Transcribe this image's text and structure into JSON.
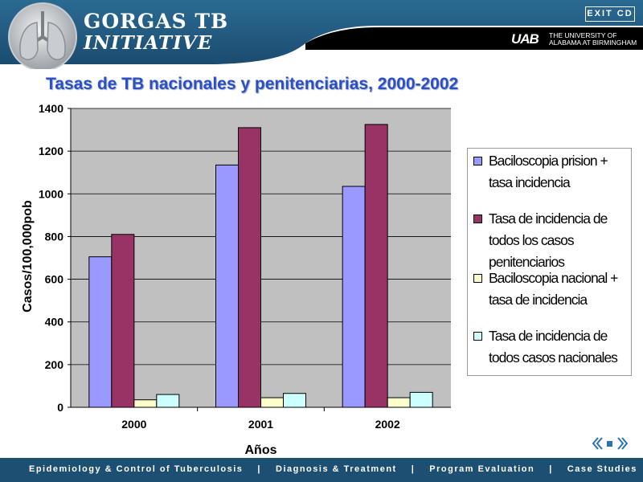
{
  "header": {
    "brand_line1": "GORGAS TB",
    "brand_line2": "INITIATIVE",
    "exit_label": "EXIT CD",
    "uab_mark": "UAB",
    "uab_line1": "THE UNIVERSITY OF",
    "uab_line2": "ALABAMA AT BIRMINGHAM"
  },
  "slide": {
    "title": "Tasas de TB nacionales y penitenciarias, 2000-2002"
  },
  "chart_data": {
    "type": "bar",
    "title": "Tasas de TB nacionales y penitenciarias, 2000-2002",
    "xlabel": "Años",
    "ylabel": "Casos/100,000pob",
    "ylim": [
      0,
      1400
    ],
    "yticks": [
      "0",
      "200",
      "400",
      "600",
      "800",
      "1000",
      "1200",
      "1400"
    ],
    "categories": [
      "2000",
      "2001",
      "2002"
    ],
    "legend_position": "right",
    "series": [
      {
        "name": "Baciloscopia prision + tasa incidencia",
        "values": [
          705,
          1135,
          1035
        ],
        "color": "#9999ff"
      },
      {
        "name": "Tasa de incidencia de todos los casos penitenciarios",
        "values": [
          810,
          1310,
          1325
        ],
        "color": "#993366"
      },
      {
        "name": "Baciloscopia nacional + tasa de incidencia",
        "values": [
          35,
          45,
          45
        ],
        "color": "#ffffcc"
      },
      {
        "name": "Tasa de incidencia de todos casos nacionales",
        "values": [
          60,
          65,
          70
        ],
        "color": "#ccffff"
      }
    ]
  },
  "footer": {
    "nav": [
      "Epidemiology & Control of Tuberculosis",
      "Diagnosis & Treatment",
      "Program Evaluation",
      "Case Studies"
    ],
    "separator": "|"
  }
}
